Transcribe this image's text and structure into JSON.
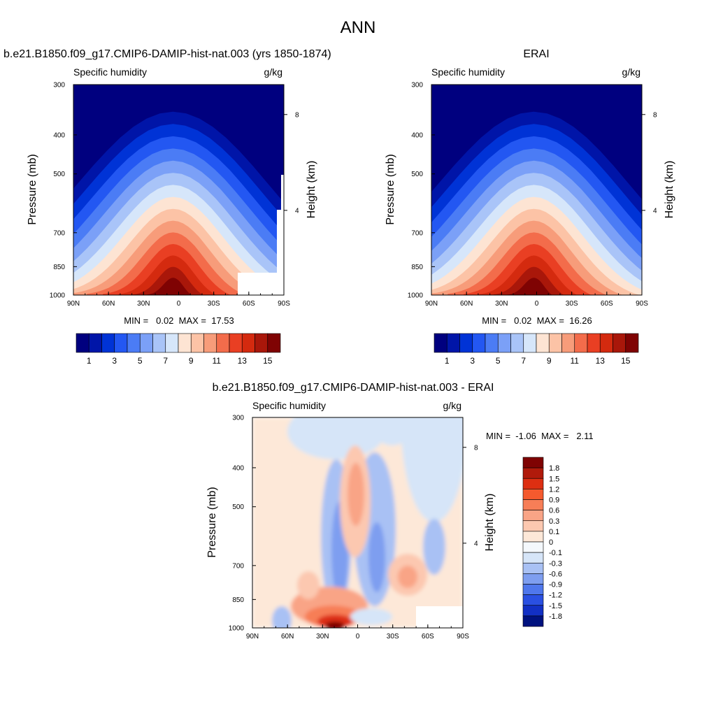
{
  "title": "ANN",
  "chart_data": [
    {
      "type": "heatmap",
      "title": "b.e21.B1850.f09_g17.CMIP6-DAMIP-hist-nat.003 (yrs 1850-1874)",
      "left_label": "Specific humidity",
      "right_label": "g/kg",
      "xlabel": "",
      "ylabel": "Pressure (mb)",
      "ylabel_right": "Height (km)",
      "x_ticks": [
        "90N",
        "60N",
        "30N",
        "0",
        "30S",
        "60S",
        "90S"
      ],
      "y_ticks": [
        "300",
        "400",
        "500",
        "700",
        "850",
        "1000"
      ],
      "y_ticks_right": [
        "8",
        "4"
      ],
      "ylim": [
        300,
        1000
      ],
      "y_scale": "log",
      "stats": "MIN =   0.02  MAX =  17.53",
      "min": 0.02,
      "max": 17.53,
      "colorbar": {
        "orientation": "horizontal",
        "labels": [
          "1",
          "3",
          "5",
          "7",
          "9",
          "11",
          "13",
          "15"
        ]
      }
    },
    {
      "type": "heatmap",
      "title": "ERAI",
      "left_label": "Specific humidity",
      "right_label": "g/kg",
      "xlabel": "",
      "ylabel": "Pressure (mb)",
      "ylabel_right": "Height (km)",
      "x_ticks": [
        "90N",
        "60N",
        "30N",
        "0",
        "30S",
        "60S",
        "90S"
      ],
      "y_ticks": [
        "300",
        "400",
        "500",
        "700",
        "850",
        "1000"
      ],
      "y_ticks_right": [
        "8",
        "4"
      ],
      "ylim": [
        300,
        1000
      ],
      "y_scale": "log",
      "stats": "MIN =   0.02  MAX =  16.26",
      "min": 0.02,
      "max": 16.26,
      "colorbar": {
        "orientation": "horizontal",
        "labels": [
          "1",
          "3",
          "5",
          "7",
          "9",
          "11",
          "13",
          "15"
        ]
      }
    },
    {
      "type": "heatmap",
      "title": "b.e21.B1850.f09_g17.CMIP6-DAMIP-hist-nat.003 - ERAI",
      "left_label": "Specific humidity",
      "right_label": "g/kg",
      "xlabel": "",
      "ylabel": "Pressure (mb)",
      "ylabel_right": "Height (km)",
      "x_ticks": [
        "90N",
        "60N",
        "30N",
        "0",
        "30S",
        "60S",
        "90S"
      ],
      "y_ticks": [
        "300",
        "400",
        "500",
        "700",
        "850",
        "1000"
      ],
      "y_ticks_right": [
        "8",
        "4"
      ],
      "ylim": [
        300,
        1000
      ],
      "y_scale": "log",
      "stats": "MIN =  -1.06  MAX =   2.11",
      "min": -1.06,
      "max": 2.11,
      "colorbar": {
        "orientation": "vertical",
        "labels": [
          "1.8",
          "1.5",
          "1.2",
          "0.9",
          "0.6",
          "0.3",
          "0.1",
          "0",
          "-0.1",
          "-0.3",
          "-0.6",
          "-0.9",
          "-1.2",
          "-1.5",
          "-1.8"
        ]
      }
    }
  ],
  "colors": {
    "abs_scale": [
      "#00007f",
      "#0015a8",
      "#0033d6",
      "#2357f2",
      "#4b7cf5",
      "#7ba0f7",
      "#a9c4f8",
      "#d6e6fa",
      "#fde4d3",
      "#fcc3a6",
      "#f79c7a",
      "#f36c4b",
      "#e93f23",
      "#d42a0f",
      "#a9170a",
      "#7f0303"
    ],
    "diff_scale": [
      "#7f0303",
      "#b01a0b",
      "#dd2f12",
      "#f55a2e",
      "#f77e57",
      "#f9a486",
      "#fcc8b0",
      "#fde8d8",
      "#f4f8fc",
      "#d6e5f8",
      "#a9c1f4",
      "#7e9ef0",
      "#4f77ec",
      "#2a50e2",
      "#1230c4",
      "#00127f"
    ]
  }
}
